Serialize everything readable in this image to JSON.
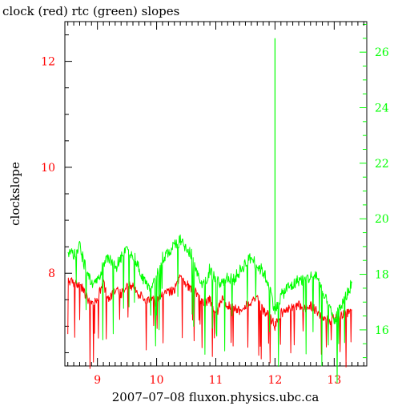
{
  "chart_data": {
    "type": "line",
    "title": "clock (red) rtc (green) slopes",
    "xlabel": "2007–07–08 fluxon.physics.ubc.ca",
    "ylabel": "clockslope",
    "xlim": [
      8.45,
      13.55
    ],
    "ylim_left": [
      6.25,
      12.75
    ],
    "ylim_right": [
      14.7,
      27.1
    ],
    "x_ticks": [
      9,
      10,
      11,
      12,
      13
    ],
    "x_tick_labels": [
      "9",
      "10",
      "11",
      "12",
      "13"
    ],
    "y_left_ticks": [
      8,
      10,
      12
    ],
    "y_left_tick_labels": [
      "8",
      "10",
      "12"
    ],
    "y_right_ticks": [
      16,
      18,
      20,
      22,
      24,
      26
    ],
    "y_right_tick_labels": [
      "16",
      "18",
      "20",
      "22",
      "24",
      "26"
    ],
    "grid": false,
    "colors": {
      "clock": "#ff0000",
      "rtc": "#00ff00",
      "frame": "#000000"
    },
    "series": [
      {
        "key": "clock",
        "axis": "left",
        "color": "#ff0000",
        "x": [
          8.5,
          8.6,
          8.7,
          8.8,
          8.9,
          9.0,
          9.1,
          9.2,
          9.3,
          9.4,
          9.5,
          9.6,
          9.7,
          9.8,
          9.9,
          10.0,
          10.1,
          10.2,
          10.3,
          10.4,
          10.5,
          10.6,
          10.7,
          10.8,
          10.9,
          11.0,
          11.1,
          11.2,
          11.3,
          11.4,
          11.5,
          11.6,
          11.7,
          11.8,
          11.9,
          12.0,
          12.1,
          12.2,
          12.3,
          12.4,
          12.5,
          12.6,
          12.7,
          12.8,
          12.9,
          13.0,
          13.1,
          13.2,
          13.3
        ],
        "y": [
          7.85,
          7.83,
          7.8,
          7.6,
          7.4,
          7.55,
          7.8,
          7.5,
          7.7,
          7.6,
          7.8,
          7.75,
          7.6,
          7.5,
          7.55,
          7.45,
          7.6,
          7.65,
          7.7,
          7.9,
          7.8,
          7.7,
          7.6,
          7.4,
          7.5,
          7.2,
          7.5,
          7.4,
          7.35,
          7.3,
          7.4,
          7.45,
          7.5,
          7.3,
          7.2,
          7.0,
          7.25,
          7.3,
          7.35,
          7.4,
          7.35,
          7.4,
          7.3,
          7.15,
          7.1,
          7.15,
          7.2,
          7.25,
          7.3
        ]
      },
      {
        "key": "rtc",
        "axis": "right",
        "color": "#00ff00",
        "x": [
          8.5,
          8.6,
          8.7,
          8.8,
          8.9,
          9.0,
          9.1,
          9.2,
          9.3,
          9.4,
          9.5,
          9.6,
          9.7,
          9.8,
          9.9,
          10.0,
          10.1,
          10.2,
          10.3,
          10.4,
          10.5,
          10.6,
          10.7,
          10.8,
          10.9,
          11.0,
          11.1,
          11.2,
          11.3,
          11.4,
          11.5,
          11.6,
          11.7,
          11.8,
          11.9,
          12.0,
          12.1,
          12.2,
          12.3,
          12.4,
          12.5,
          12.6,
          12.7,
          12.8,
          12.9,
          13.0,
          13.1,
          13.2,
          13.3
        ],
        "y": [
          18.8,
          18.7,
          19.0,
          18.2,
          17.6,
          17.8,
          18.3,
          18.6,
          18.2,
          18.6,
          18.9,
          18.7,
          18.2,
          17.7,
          17.5,
          17.9,
          18.6,
          18.8,
          19.0,
          19.2,
          19.0,
          18.7,
          18.0,
          17.6,
          18.2,
          17.8,
          17.7,
          17.9,
          17.8,
          18.1,
          18.4,
          18.6,
          18.3,
          18.1,
          17.6,
          16.7,
          17.2,
          17.5,
          17.6,
          17.8,
          17.8,
          17.9,
          18.0,
          17.3,
          16.9,
          16.3,
          16.8,
          17.2,
          17.7
        ]
      }
    ],
    "annotations": [
      {
        "series": "rtc",
        "x": 12.0,
        "y": 26.5,
        "kind": "spike"
      }
    ]
  }
}
